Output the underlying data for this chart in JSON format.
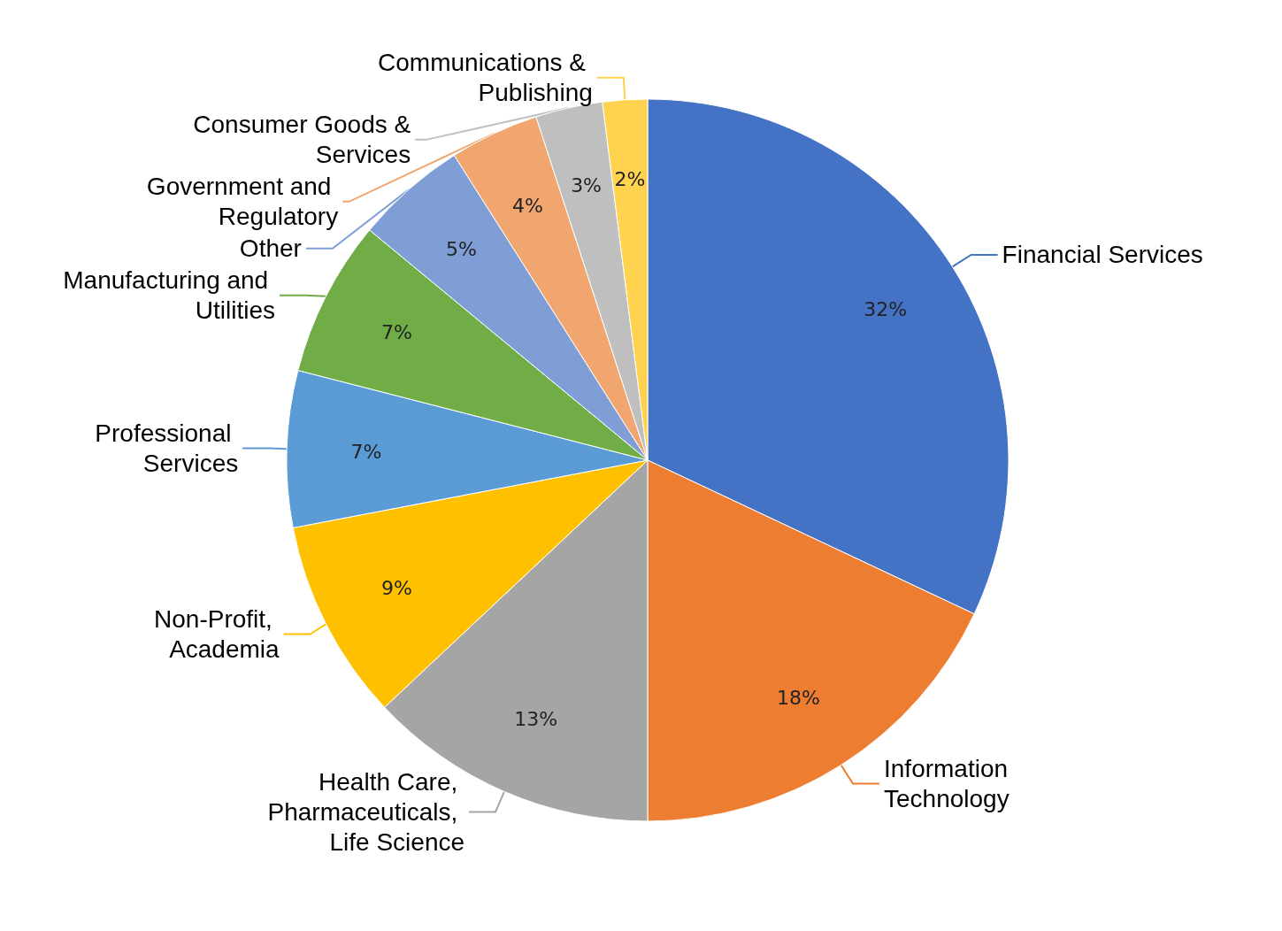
{
  "chart_data": {
    "type": "pie",
    "categories": [
      "Financial Services",
      "Information Technology",
      "Health Care, Pharmaceuticals, Life Science",
      "Non-Profit, Academia",
      "Professional Services",
      "Manufacturing and Utilities",
      "Other",
      "Government and Regulatory",
      "Consumer Goods & Services",
      "Communications & Publishing"
    ],
    "values": [
      32,
      18,
      13,
      9,
      7,
      7,
      5,
      4,
      3,
      2
    ],
    "value_labels": [
      "32%",
      "18%",
      "13%",
      "9%",
      "7%",
      "7%",
      "5%",
      "4%",
      "3%",
      "2%"
    ],
    "colors": [
      "#4472c4",
      "#ed7d31",
      "#a5a5a5",
      "#ffc000",
      "#5b9bd5",
      "#70ad47",
      "#7f9ed6",
      "#f1a66f",
      "#bfbfbf",
      "#ffd34f"
    ]
  }
}
